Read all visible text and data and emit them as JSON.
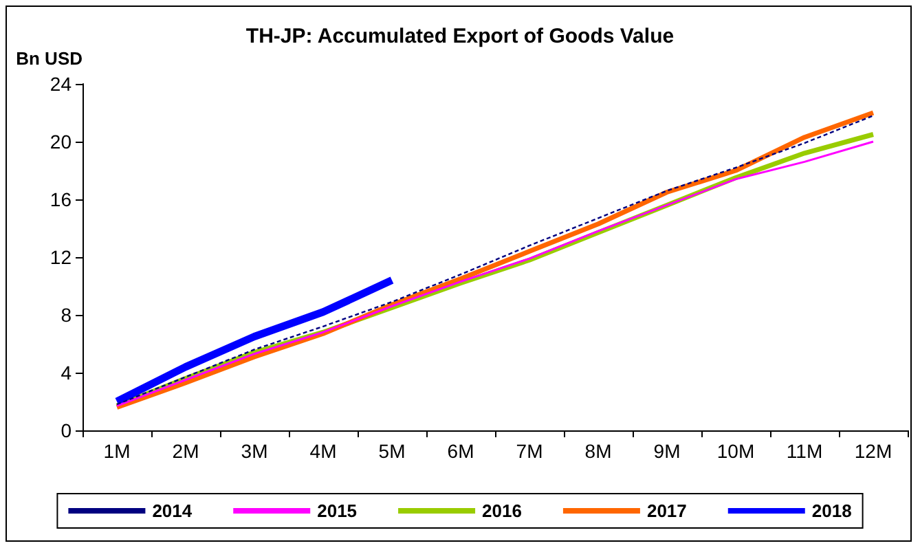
{
  "chart_data": {
    "type": "line",
    "title": "TH-JP: Accumulated Export of Goods Value",
    "ylabel": "Bn USD",
    "categories": [
      "1M",
      "2M",
      "3M",
      "4M",
      "5M",
      "6M",
      "7M",
      "8M",
      "9M",
      "10M",
      "11M",
      "12M"
    ],
    "ylim": [
      0,
      24
    ],
    "yticks": [
      0,
      4,
      8,
      12,
      16,
      20,
      24
    ],
    "grid": false,
    "legend": "bottom",
    "marker": "none",
    "series": [
      {
        "name": "2014",
        "color": "#000080",
        "line_style": "dashed",
        "values": [
          1.8,
          3.7,
          5.6,
          7.2,
          8.9,
          10.8,
          12.8,
          14.7,
          16.6,
          18.2,
          19.9,
          21.8
        ]
      },
      {
        "name": "2015",
        "color": "#ff00ff",
        "values": [
          1.7,
          3.5,
          5.3,
          6.8,
          8.6,
          10.3,
          11.9,
          13.8,
          15.6,
          17.4,
          18.6,
          20.0
        ]
      },
      {
        "name": "2016",
        "color": "#99cc00",
        "values": [
          1.7,
          3.6,
          5.4,
          6.8,
          8.5,
          10.2,
          11.8,
          13.7,
          15.6,
          17.5,
          19.2,
          20.5
        ]
      },
      {
        "name": "2017",
        "color": "#ff6600",
        "values": [
          1.6,
          3.3,
          5.1,
          6.7,
          8.7,
          10.5,
          12.4,
          14.3,
          16.5,
          18.0,
          20.3,
          22.0
        ]
      },
      {
        "name": "2018",
        "color": "#0000ff",
        "values": [
          2.0,
          4.4,
          6.5,
          8.2,
          10.4,
          null,
          null,
          null,
          null,
          null,
          null,
          null
        ]
      }
    ]
  }
}
